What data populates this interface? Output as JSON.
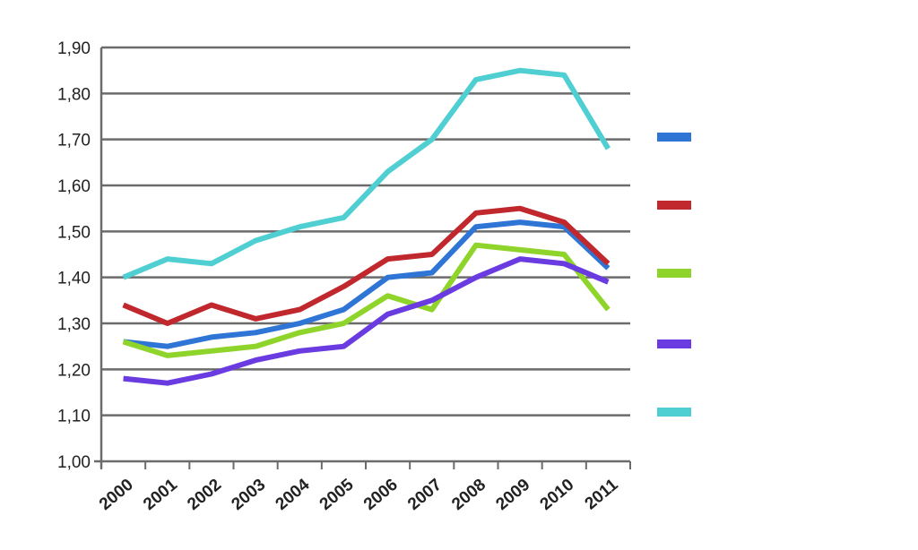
{
  "chart_data": {
    "type": "line",
    "title": "",
    "xlabel": "",
    "ylabel": "",
    "categories": [
      "2000",
      "2001",
      "2002",
      "2003",
      "2004",
      "2005",
      "2006",
      "2007",
      "2008",
      "2009",
      "2010",
      "2011"
    ],
    "y_ticks": [
      "1,00",
      "1,10",
      "1,20",
      "1,30",
      "1,40",
      "1,50",
      "1,60",
      "1,70",
      "1,80",
      "1,90"
    ],
    "ylim": [
      1.0,
      1.9
    ],
    "grid": true,
    "legend_position": "right",
    "series": [
      {
        "color": "#2e75d6",
        "values": [
          1.26,
          1.25,
          1.27,
          1.28,
          1.3,
          1.33,
          1.4,
          1.41,
          1.51,
          1.52,
          1.51,
          1.42
        ]
      },
      {
        "color": "#c0282d",
        "values": [
          1.34,
          1.3,
          1.34,
          1.31,
          1.33,
          1.38,
          1.44,
          1.45,
          1.54,
          1.55,
          1.52,
          1.43
        ]
      },
      {
        "color": "#8fd42a",
        "values": [
          1.26,
          1.23,
          1.24,
          1.25,
          1.28,
          1.3,
          1.36,
          1.33,
          1.47,
          1.46,
          1.45,
          1.33
        ]
      },
      {
        "color": "#6a3be0",
        "values": [
          1.18,
          1.17,
          1.19,
          1.22,
          1.24,
          1.25,
          1.32,
          1.35,
          1.4,
          1.44,
          1.43,
          1.39
        ]
      },
      {
        "color": "#4fcfd2",
        "values": [
          1.4,
          1.44,
          1.43,
          1.48,
          1.51,
          1.53,
          1.63,
          1.7,
          1.83,
          1.85,
          1.84,
          1.68
        ]
      }
    ]
  }
}
